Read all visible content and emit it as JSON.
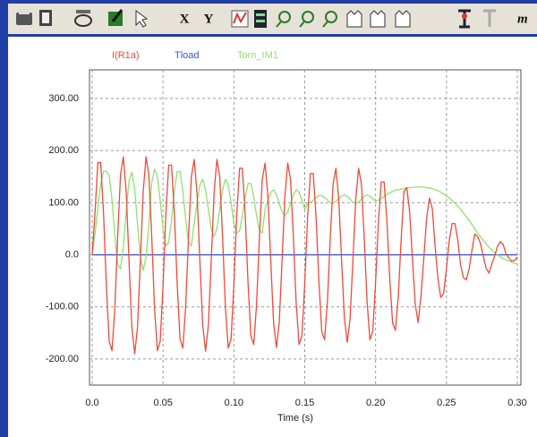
{
  "toolbar": {
    "labels": [
      "X",
      "Y",
      "m"
    ]
  },
  "chart_data": {
    "type": "line",
    "x_label": "Time (s)",
    "x": [
      0,
      0.002,
      0.004,
      0.006,
      0.008,
      0.01,
      0.012,
      0.014,
      0.016,
      0.018,
      0.02,
      0.022,
      0.024,
      0.026,
      0.028,
      0.03,
      0.032,
      0.034,
      0.036,
      0.038,
      0.04,
      0.042,
      0.044,
      0.046,
      0.048,
      0.05,
      0.052,
      0.054,
      0.056,
      0.058,
      0.06,
      0.062,
      0.064,
      0.066,
      0.068,
      0.07,
      0.072,
      0.074,
      0.076,
      0.078,
      0.08,
      0.082,
      0.084,
      0.086,
      0.088,
      0.09,
      0.092,
      0.094,
      0.096,
      0.098,
      0.1,
      0.102,
      0.104,
      0.106,
      0.108,
      0.11,
      0.112,
      0.114,
      0.116,
      0.118,
      0.12,
      0.122,
      0.124,
      0.126,
      0.128,
      0.13,
      0.132,
      0.134,
      0.136,
      0.138,
      0.14,
      0.142,
      0.144,
      0.146,
      0.148,
      0.15,
      0.152,
      0.154,
      0.156,
      0.158,
      0.16,
      0.162,
      0.164,
      0.166,
      0.168,
      0.17,
      0.172,
      0.174,
      0.176,
      0.178,
      0.18,
      0.182,
      0.184,
      0.186,
      0.188,
      0.19,
      0.192,
      0.194,
      0.196,
      0.198,
      0.2,
      0.202,
      0.204,
      0.206,
      0.208,
      0.21,
      0.212,
      0.214,
      0.216,
      0.218,
      0.22,
      0.222,
      0.224,
      0.226,
      0.228,
      0.23,
      0.232,
      0.234,
      0.236,
      0.238,
      0.24,
      0.242,
      0.244,
      0.246,
      0.248,
      0.25,
      0.252,
      0.254,
      0.256,
      0.258,
      0.26,
      0.262,
      0.264,
      0.266,
      0.268,
      0.27,
      0.272,
      0.274,
      0.276,
      0.278,
      0.28,
      0.282,
      0.284,
      0.286,
      0.288,
      0.29,
      0.292,
      0.294,
      0.296,
      0.298,
      0.3
    ],
    "series": [
      {
        "name": "I(R1a)",
        "color": "#ee4a38",
        "values": [
          0,
          81,
          177,
          177,
          81,
          -59,
          -166,
          -184,
          -102,
          36,
          154,
          188,
          121,
          -12,
          -139,
          -190,
          -139,
          -12,
          121,
          188,
          154,
          36,
          -102,
          -184,
          -166,
          -59,
          79,
          172,
          172,
          79,
          -57,
          -162,
          -179,
          -99,
          35,
          150,
          183,
          118,
          -12,
          -135,
          -185,
          -135,
          -12,
          118,
          183,
          150,
          35,
          -99,
          -179,
          -162,
          -57,
          76,
          166,
          166,
          76,
          -55,
          -156,
          -172,
          -95,
          33,
          144,
          176,
          113,
          -11,
          -130,
          -178,
          -130,
          -11,
          113,
          176,
          144,
          33,
          -95,
          -172,
          -156,
          -55,
          72,
          156,
          156,
          72,
          -52,
          -147,
          -163,
          -90,
          31,
          136,
          166,
          107,
          -11,
          -122,
          -168,
          -122,
          -11,
          107,
          166,
          136,
          31,
          -90,
          -163,
          -147,
          -52,
          64,
          140,
          140,
          64,
          -46,
          -131,
          -145,
          -80,
          28,
          121,
          129,
          83,
          -8,
          -95,
          -130,
          -80,
          -7,
          70,
          109,
          89,
          16,
          -46,
          -82,
          -74,
          -26,
          28,
          60,
          60,
          28,
          -20,
          -44,
          -48,
          -27,
          9,
          40,
          35,
          22,
          -2,
          -26,
          -35,
          -18,
          -2,
          16,
          25,
          20,
          2,
          -6,
          -12,
          -11,
          -4
        ]
      },
      {
        "name": "Tload",
        "color": "#3e52e0",
        "values": [
          0,
          0,
          0,
          0,
          0,
          0,
          0,
          0,
          0,
          0,
          0,
          0,
          0,
          0,
          0,
          0,
          0,
          0,
          0,
          0,
          0,
          0,
          0,
          0,
          0,
          0,
          0,
          0,
          0,
          0,
          0,
          0,
          0,
          0,
          0,
          0,
          0,
          0,
          0,
          0,
          0,
          0,
          0,
          0,
          0,
          0,
          0,
          0,
          0,
          0,
          0,
          0,
          0,
          0,
          0,
          0,
          0,
          0,
          0,
          0,
          0,
          0,
          0,
          0,
          0,
          0,
          0,
          0,
          0,
          0,
          0,
          0,
          0,
          0,
          0,
          0,
          0,
          0,
          0,
          0,
          0,
          0,
          0,
          0,
          0,
          0,
          0,
          0,
          0,
          0,
          0,
          0,
          0,
          0,
          0,
          0,
          0,
          0,
          0,
          0,
          0,
          0,
          0,
          0,
          0,
          0,
          0,
          0,
          0,
          0,
          0,
          0,
          0,
          0,
          0,
          0,
          0,
          0,
          0,
          0,
          0,
          0,
          0,
          0,
          0,
          0,
          0,
          0,
          0,
          0,
          0,
          0,
          0,
          0,
          0,
          0,
          0,
          0,
          0,
          0,
          0,
          0,
          0,
          0,
          0,
          0,
          0,
          0,
          0,
          0,
          0
        ]
      },
      {
        "name": "Torn_IM1",
        "color": "#8ee26e",
        "values": [
          0,
          40,
          90,
          135,
          160,
          160,
          153,
          105,
          36,
          -18,
          -27,
          14,
          83,
          142,
          159,
          126,
          59,
          -4,
          -30,
          -4,
          59,
          138,
          164,
          151,
          104,
          50,
          17,
          24,
          67,
          122,
          160,
          160,
          122,
          67,
          24,
          17,
          61,
          100,
          134,
          145,
          125,
          87,
          50,
          35,
          50,
          87,
          125,
          145,
          134,
          100,
          61,
          42,
          46,
          75,
          111,
          137,
          137,
          111,
          75,
          46,
          42,
          87,
          105,
          120,
          125,
          116,
          98,
          82,
          75,
          82,
          98,
          116,
          125,
          120,
          105,
          87,
          99,
          100,
          105,
          110,
          114,
          114,
          110,
          105,
          100,
          99,
          103,
          108,
          113,
          115,
          112,
          107,
          101,
          99,
          101,
          107,
          112,
          115,
          113,
          108,
          103,
          105,
          108,
          112,
          116,
          119,
          122,
          124,
          125,
          126,
          127,
          128,
          129,
          129,
          130,
          130,
          130,
          130,
          129,
          128,
          127,
          125,
          123,
          120,
          117,
          113,
          109,
          104,
          99,
          93,
          87,
          80,
          73,
          66,
          58,
          50,
          42,
          35,
          28,
          21,
          15,
          9,
          4,
          0,
          -4,
          -7,
          -10,
          -12,
          -14,
          -16,
          -18
        ]
      }
    ],
    "xlim": [
      0,
      0.3
    ],
    "xticks": [
      {
        "value": 0,
        "label": "0.0"
      },
      0.05,
      {
        "value": 0.1,
        "label": "0.10"
      },
      0.15,
      {
        "value": 0.2,
        "label": "0.20"
      },
      0.25,
      {
        "value": 0.3,
        "label": "0.30"
      }
    ],
    "ylim": [
      -250,
      355
    ],
    "yticks": [
      {
        "value": 300,
        "label": "300.00"
      },
      {
        "value": 200,
        "label": "200.00"
      },
      {
        "value": 100,
        "label": "100.00"
      },
      {
        "value": 0,
        "label": "0.0"
      },
      {
        "value": -100,
        "label": "-100.00"
      },
      {
        "value": -200,
        "label": "-200.00"
      }
    ],
    "grid": true,
    "legend": "top"
  }
}
